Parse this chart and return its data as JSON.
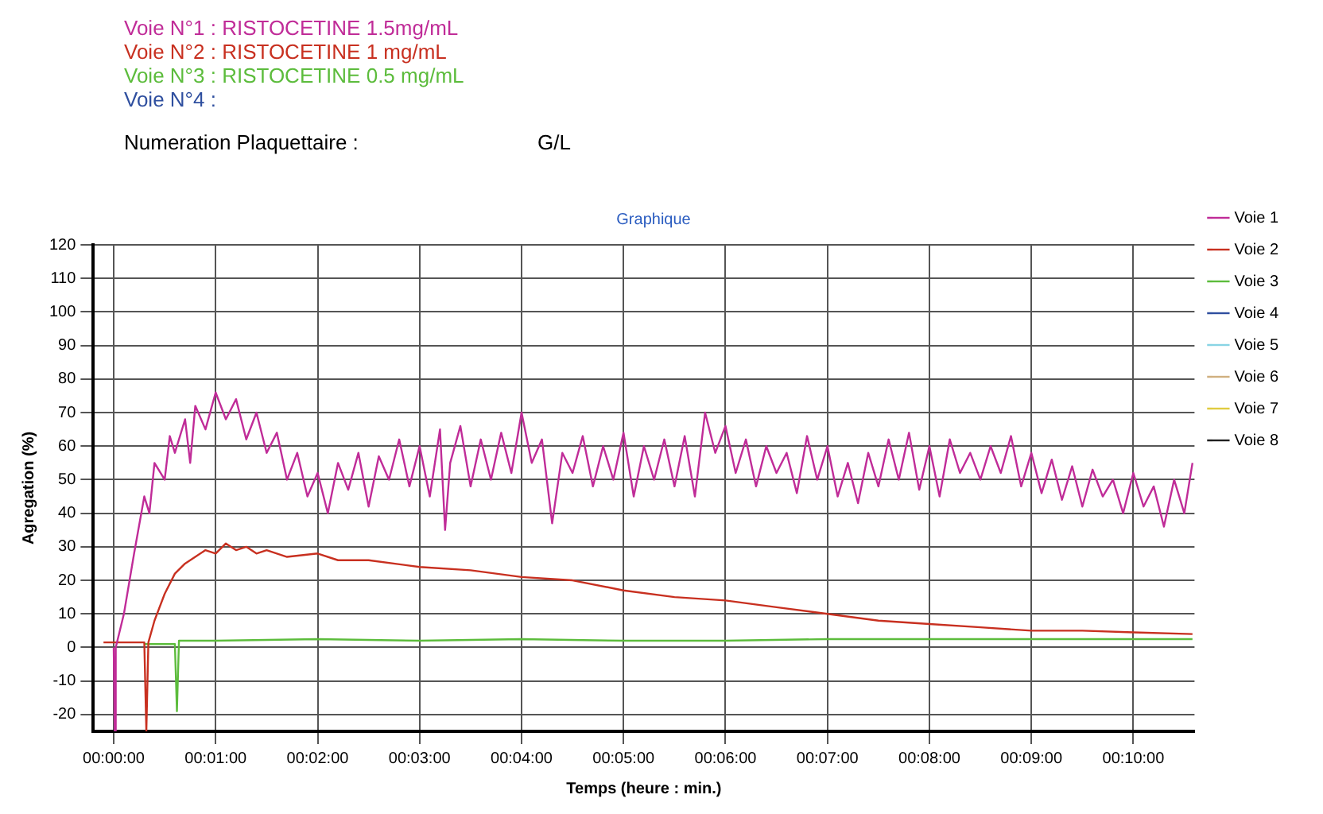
{
  "chart_data": {
    "type": "line",
    "title": "Graphique",
    "xlabel": "Temps (heure : min.)",
    "ylabel": "Agregation (%)",
    "annotations": [
      "Voie N°1 : RISTOCETINE 1.5mg/mL",
      "Voie N°2 : RISTOCETINE 1 mg/mL",
      "Voie N°3 : RISTOCETINE 0.5 mg/mL",
      "Voie N°4 :",
      "Numeration Plaquettaire :",
      "G/L"
    ],
    "xlim": [
      -0.2,
      10.6
    ],
    "ylim": [
      -25,
      120
    ],
    "xticks": [
      {
        "value": 0,
        "label": "00:00:00"
      },
      {
        "value": 1,
        "label": "00:01:00"
      },
      {
        "value": 2,
        "label": "00:02:00"
      },
      {
        "value": 3,
        "label": "00:03:00"
      },
      {
        "value": 4,
        "label": "00:04:00"
      },
      {
        "value": 5,
        "label": "00:05:00"
      },
      {
        "value": 6,
        "label": "00:06:00"
      },
      {
        "value": 7,
        "label": "00:07:00"
      },
      {
        "value": 8,
        "label": "00:08:00"
      },
      {
        "value": 9,
        "label": "00:09:00"
      },
      {
        "value": 10,
        "label": "00:10:00"
      }
    ],
    "yticks": [
      -20,
      -10,
      0,
      10,
      20,
      30,
      40,
      50,
      60,
      70,
      80,
      90,
      100,
      110,
      120
    ],
    "grid": true,
    "legend": "right",
    "marker": "none",
    "line_style": "solid",
    "series": [
      {
        "name": "Voie 1",
        "color": "#c02c98",
        "x": [
          0,
          0.01,
          0.02,
          0.1,
          0.2,
          0.3,
          0.35,
          0.4,
          0.5,
          0.55,
          0.6,
          0.7,
          0.75,
          0.8,
          0.9,
          1.0,
          1.1,
          1.2,
          1.3,
          1.4,
          1.5,
          1.6,
          1.7,
          1.8,
          1.9,
          2.0,
          2.1,
          2.2,
          2.3,
          2.4,
          2.5,
          2.6,
          2.7,
          2.8,
          2.9,
          3.0,
          3.1,
          3.2,
          3.25,
          3.3,
          3.4,
          3.5,
          3.6,
          3.7,
          3.8,
          3.9,
          4.0,
          4.1,
          4.2,
          4.3,
          4.4,
          4.5,
          4.6,
          4.7,
          4.8,
          4.9,
          5.0,
          5.1,
          5.2,
          5.3,
          5.4,
          5.5,
          5.6,
          5.7,
          5.8,
          5.9,
          6.0,
          6.1,
          6.2,
          6.3,
          6.4,
          6.5,
          6.6,
          6.7,
          6.8,
          6.9,
          7.0,
          7.1,
          7.2,
          7.3,
          7.4,
          7.5,
          7.6,
          7.7,
          7.8,
          7.9,
          8.0,
          8.1,
          8.2,
          8.3,
          8.4,
          8.5,
          8.6,
          8.7,
          8.8,
          8.9,
          9.0,
          9.1,
          9.2,
          9.3,
          9.4,
          9.5,
          9.6,
          9.7,
          9.8,
          9.9,
          10.0,
          10.1,
          10.2,
          10.3,
          10.4,
          10.5,
          10.58
        ],
        "values": [
          0,
          -25,
          0,
          10,
          28,
          45,
          40,
          55,
          50,
          63,
          58,
          68,
          55,
          72,
          65,
          76,
          68,
          74,
          62,
          70,
          58,
          64,
          50,
          58,
          45,
          52,
          40,
          55,
          47,
          58,
          42,
          57,
          50,
          62,
          48,
          60,
          45,
          65,
          35,
          55,
          66,
          48,
          62,
          50,
          64,
          52,
          70,
          55,
          62,
          37,
          58,
          52,
          63,
          48,
          60,
          50,
          64,
          45,
          60,
          50,
          62,
          48,
          63,
          45,
          70,
          58,
          66,
          52,
          62,
          48,
          60,
          52,
          58,
          46,
          63,
          50,
          60,
          45,
          55,
          43,
          58,
          48,
          62,
          50,
          64,
          47,
          60,
          45,
          62,
          52,
          58,
          50,
          60,
          52,
          63,
          48,
          58,
          46,
          56,
          44,
          54,
          42,
          53,
          45,
          50,
          40,
          52,
          42,
          48,
          36,
          50,
          40,
          55
        ]
      },
      {
        "name": "Voie 2",
        "color": "#c83020",
        "x": [
          -0.1,
          0.3,
          0.32,
          0.34,
          0.4,
          0.5,
          0.6,
          0.7,
          0.8,
          0.9,
          1.0,
          1.1,
          1.2,
          1.3,
          1.4,
          1.5,
          1.7,
          2.0,
          2.2,
          2.5,
          3.0,
          3.5,
          4.0,
          4.5,
          5.0,
          5.5,
          6.0,
          6.5,
          7.0,
          7.5,
          8.0,
          8.5,
          9.0,
          9.5,
          10.0,
          10.58
        ],
        "values": [
          1.5,
          1.5,
          -25,
          1.5,
          8,
          16,
          22,
          25,
          27,
          29,
          28,
          31,
          29,
          30,
          28,
          29,
          27,
          28,
          26,
          26,
          24,
          23,
          21,
          20,
          17,
          15,
          14,
          12,
          10,
          8,
          7,
          6,
          5,
          5,
          4.5,
          4
        ]
      },
      {
        "name": "Voie 3",
        "color": "#5cbc3c",
        "x": [
          0.3,
          0.6,
          0.62,
          0.64,
          1,
          2,
          3,
          4,
          5,
          6,
          7,
          8,
          9,
          10,
          10.58
        ],
        "values": [
          1,
          1,
          -19,
          2,
          2,
          2.5,
          2,
          2.5,
          2,
          2,
          2.5,
          2.5,
          2.5,
          2.5,
          2.5
        ]
      },
      {
        "name": "Voie 4",
        "color": "#2f4f9f"
      },
      {
        "name": "Voie 5",
        "color": "#88d4e4"
      },
      {
        "name": "Voie 6",
        "color": "#d0b080"
      },
      {
        "name": "Voie 7",
        "color": "#e0cc40"
      },
      {
        "name": "Voie 8",
        "color": "#202020"
      }
    ]
  }
}
